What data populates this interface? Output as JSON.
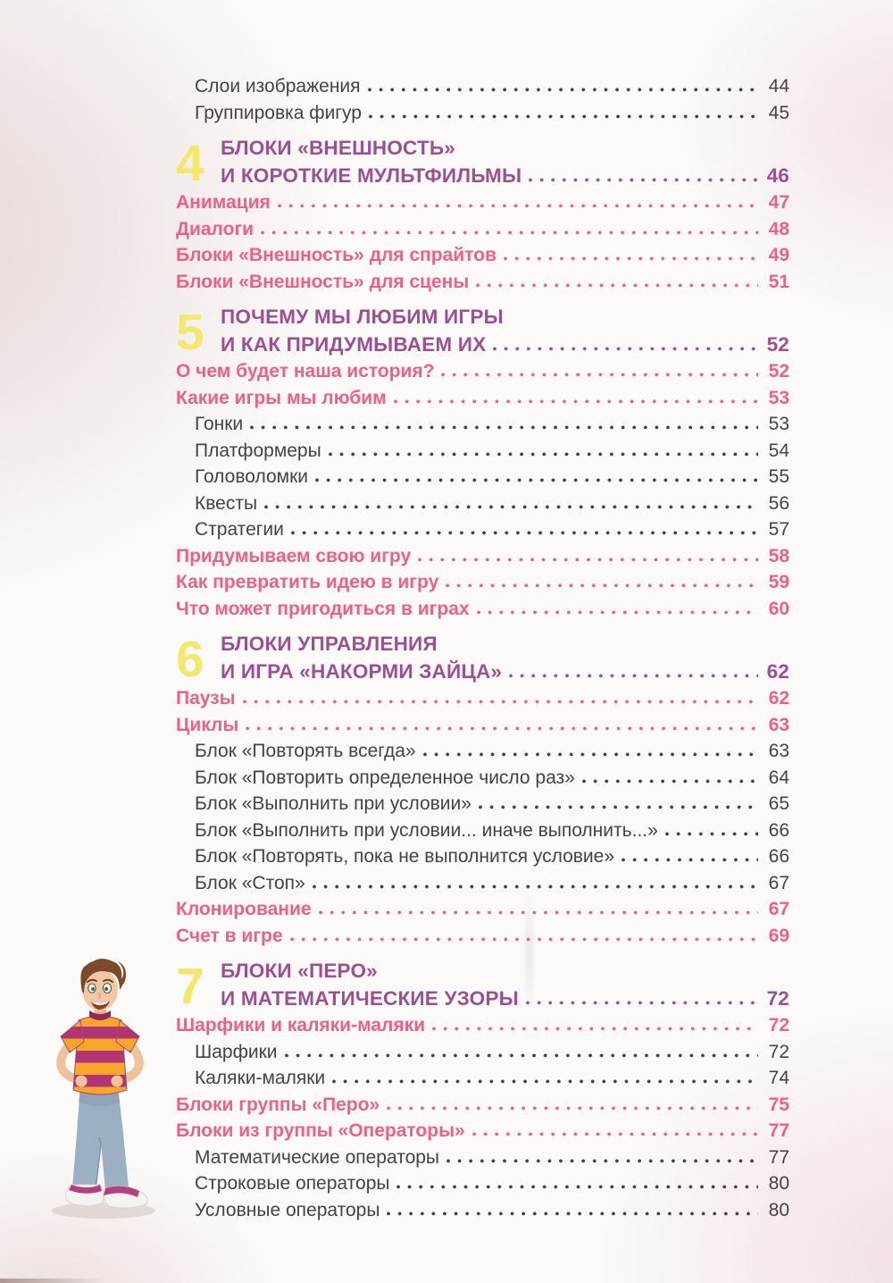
{
  "colors": {
    "chapter_yellow": "#f3e76d",
    "chapter_purple": "#9b5191",
    "section_pink": "#ee6186",
    "sub_dark": "#474241"
  },
  "illustration": {
    "name": "cartoon-boy-hands-on-hips"
  },
  "toc": {
    "entries": [
      {
        "kind": "sub",
        "label": "Слои изображения",
        "page": "44"
      },
      {
        "kind": "sub",
        "label": "Группировка фигур",
        "page": "45"
      },
      {
        "kind": "chapter",
        "number": "4",
        "lines": [
          "БЛОКИ «ВНЕШНОСТЬ»",
          "И КОРОТКИЕ МУЛЬТФИЛЬМЫ"
        ],
        "page": "46"
      },
      {
        "kind": "section",
        "label": "Анимация",
        "page": "47"
      },
      {
        "kind": "section",
        "label": "Диалоги",
        "page": "48"
      },
      {
        "kind": "section",
        "label": "Блоки «Внешность» для спрайтов",
        "page": "49"
      },
      {
        "kind": "section",
        "label": "Блоки «Внешность» для сцены",
        "page": "51"
      },
      {
        "kind": "chapter",
        "number": "5",
        "lines": [
          "ПОЧЕМУ МЫ ЛЮБИМ ИГРЫ",
          "И КАК ПРИДУМЫВАЕМ ИХ"
        ],
        "page": "52"
      },
      {
        "kind": "section",
        "label": "О чем будет наша история?",
        "page": "52"
      },
      {
        "kind": "section",
        "label": "Какие игры мы любим",
        "page": "53"
      },
      {
        "kind": "sub",
        "label": "Гонки",
        "page": "53"
      },
      {
        "kind": "sub",
        "label": "Платформеры",
        "page": "54"
      },
      {
        "kind": "sub",
        "label": "Головоломки",
        "page": "55"
      },
      {
        "kind": "sub",
        "label": "Квесты",
        "page": "56"
      },
      {
        "kind": "sub",
        "label": "Стратегии",
        "page": "57"
      },
      {
        "kind": "section",
        "label": "Придумываем свою игру",
        "page": "58"
      },
      {
        "kind": "section",
        "label": "Как превратить идею в игру",
        "page": "59"
      },
      {
        "kind": "section",
        "label": "Что может пригодиться в играх",
        "page": "60"
      },
      {
        "kind": "chapter",
        "number": "6",
        "lines": [
          "БЛОКИ УПРАВЛЕНИЯ",
          "И ИГРА «НАКОРМИ ЗАЙЦА»"
        ],
        "page": "62"
      },
      {
        "kind": "section",
        "label": "Паузы",
        "page": "62"
      },
      {
        "kind": "section",
        "label": "Циклы",
        "page": "63"
      },
      {
        "kind": "sub",
        "label": "Блок «Повторять всегда»",
        "page": "63"
      },
      {
        "kind": "sub",
        "label": "Блок «Повторить определенное число раз»",
        "page": "64"
      },
      {
        "kind": "sub",
        "label": "Блок «Выполнить при условии»",
        "page": "65"
      },
      {
        "kind": "sub",
        "label": "Блок «Выполнить при условии... иначе выполнить...»",
        "page": "66"
      },
      {
        "kind": "sub",
        "label": "Блок «Повторять, пока не выполнится условие»",
        "page": "66"
      },
      {
        "kind": "sub",
        "label": "Блок «Стоп»",
        "page": "67"
      },
      {
        "kind": "section",
        "label": "Клонирование",
        "page": "67"
      },
      {
        "kind": "section",
        "label": "Счет в игре",
        "page": "69"
      },
      {
        "kind": "chapter",
        "number": "7",
        "lines": [
          "БЛОКИ «ПЕРО»",
          "И МАТЕМАТИЧЕСКИЕ УЗОРЫ"
        ],
        "page": "72"
      },
      {
        "kind": "section",
        "label": "Шарфики и каляки-маляки",
        "page": "72"
      },
      {
        "kind": "sub",
        "label": "Шарфики",
        "page": "72"
      },
      {
        "kind": "sub",
        "label": "Каляки-маляки",
        "page": "74"
      },
      {
        "kind": "section",
        "label": "Блоки группы «Перо»",
        "page": "75"
      },
      {
        "kind": "section",
        "label": "Блоки из группы «Операторы»",
        "page": "77"
      },
      {
        "kind": "sub",
        "label": "Математические операторы",
        "page": "77"
      },
      {
        "kind": "sub",
        "label": "Строковые операторы",
        "page": "80"
      },
      {
        "kind": "sub",
        "label": "Условные операторы",
        "page": "80"
      }
    ]
  }
}
